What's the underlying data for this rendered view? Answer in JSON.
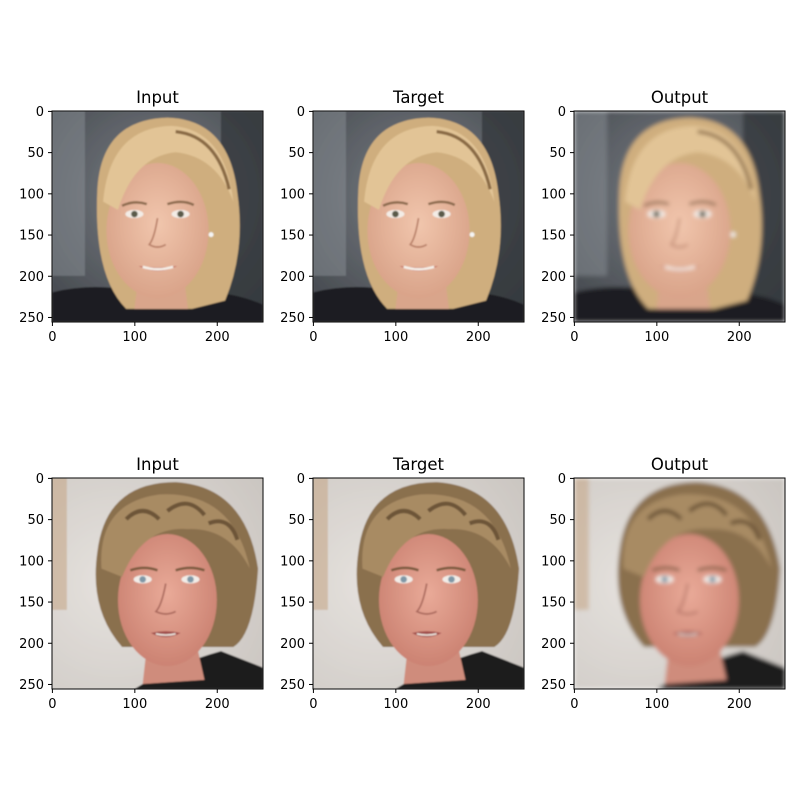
{
  "figure": {
    "rows": [
      {
        "subject": "woman-blonde",
        "panels": [
          {
            "title": "Input",
            "kind": "photo-sharp"
          },
          {
            "title": "Target",
            "kind": "photo-sharp"
          },
          {
            "title": "Output",
            "kind": "photo-smooth"
          }
        ]
      },
      {
        "subject": "man-curly",
        "panels": [
          {
            "title": "Input",
            "kind": "photo-sharp"
          },
          {
            "title": "Target",
            "kind": "photo-sharp"
          },
          {
            "title": "Output",
            "kind": "photo-smooth"
          }
        ]
      }
    ],
    "x_ticks": [
      0,
      100,
      200
    ],
    "y_ticks": [
      0,
      50,
      100,
      150,
      200,
      250
    ],
    "image_extent": [
      0,
      256
    ],
    "colors": {
      "woman_bg": "#5b6066",
      "woman_hair": "#d9b98a",
      "woman_skin": "#e7b79e",
      "woman_jacket": "#1f1f24",
      "man_bg": "#d8d3cf",
      "man_hair": "#8f7553",
      "man_skin": "#d99583",
      "man_shirt": "#1b1b1b"
    }
  }
}
